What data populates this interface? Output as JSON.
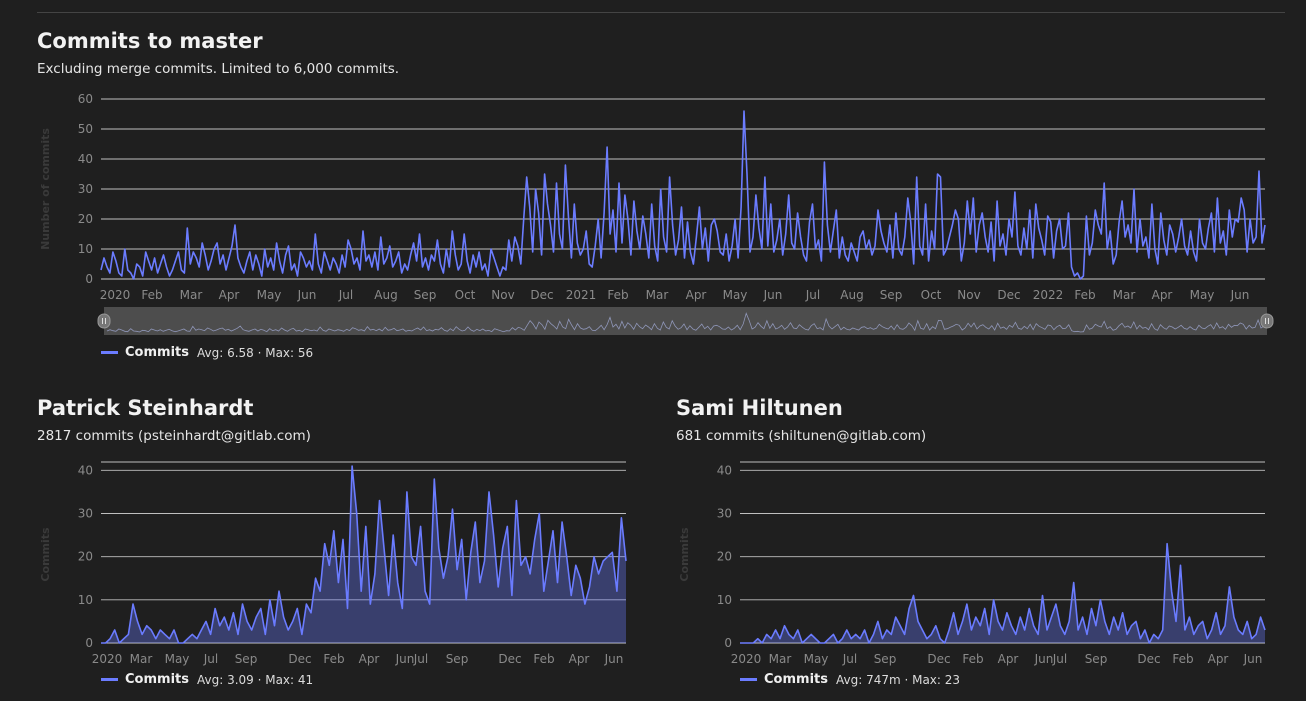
{
  "main": {
    "title": "Commits to master",
    "subtitle": "Excluding merge commits. Limited to 6,000 commits.",
    "legend_name": "Commits",
    "legend_stats": "Avg: 6.58 · Max: 56"
  },
  "contributors": [
    {
      "name": "Patrick Steinhardt",
      "summary": "2817 commits (psteinhardt@gitlab.com)",
      "legend_name": "Commits",
      "legend_stats": "Avg: 3.09 · Max: 41"
    },
    {
      "name": "Sami Hiltunen",
      "summary": "681 commits (shiltunen@gitlab.com)",
      "legend_name": "Commits",
      "legend_stats": "Avg: 747m · Max: 23"
    }
  ],
  "colors": {
    "series": "#6b7cff",
    "grid": "#dcdcdc",
    "axis_text": "#8a8a8a",
    "navigator": "#4d4d4d"
  },
  "chart_data": [
    {
      "type": "line",
      "title": "Commits to master",
      "ylabel": "Number of commits",
      "ylim": [
        0,
        60
      ],
      "yticks": [
        0,
        10,
        20,
        30,
        40,
        50,
        60
      ],
      "xlabels": [
        "2020",
        "Feb",
        "Mar",
        "Apr",
        "May",
        "Jun",
        "Jul",
        "Aug",
        "Sep",
        "Oct",
        "Nov",
        "Dec",
        "2021",
        "Feb",
        "Mar",
        "Apr",
        "May",
        "Jun",
        "Jul",
        "Aug",
        "Sep",
        "Oct",
        "Nov",
        "Dec",
        "2022",
        "Feb",
        "Mar",
        "Apr",
        "May",
        "Jun"
      ],
      "series": [
        {
          "name": "Commits",
          "values": [
            3,
            7,
            4,
            2,
            9,
            6,
            2,
            1,
            10,
            3,
            2,
            0,
            5,
            4,
            1,
            9,
            6,
            3,
            7,
            2,
            5,
            8,
            4,
            1,
            3,
            6,
            9,
            3,
            2,
            17,
            5,
            9,
            7,
            4,
            12,
            8,
            3,
            6,
            10,
            12,
            5,
            8,
            3,
            7,
            11,
            18,
            7,
            4,
            2,
            6,
            9,
            3,
            8,
            5,
            1,
            10,
            4,
            7,
            3,
            12,
            6,
            2,
            8,
            11,
            3,
            5,
            1,
            9,
            7,
            4,
            6,
            3,
            15,
            5,
            2,
            9,
            6,
            3,
            7,
            5,
            2,
            8,
            4,
            13,
            10,
            5,
            7,
            3,
            16,
            6,
            8,
            4,
            9,
            3,
            14,
            5,
            7,
            11,
            4,
            6,
            9,
            2,
            5,
            3,
            8,
            12,
            6,
            15,
            4,
            7,
            3,
            8,
            6,
            13,
            5,
            2,
            10,
            4,
            16,
            8,
            3,
            5,
            15,
            6,
            2,
            8,
            4,
            9,
            3,
            5,
            1,
            10,
            7,
            4,
            1,
            4,
            3,
            13,
            6,
            14,
            11,
            5,
            20,
            34,
            24,
            9,
            30,
            22,
            8,
            35,
            25,
            18,
            9,
            32,
            15,
            10,
            38,
            21,
            7,
            25,
            12,
            8,
            10,
            16,
            5,
            4,
            11,
            20,
            7,
            22,
            44,
            15,
            23,
            9,
            32,
            12,
            28,
            20,
            8,
            26,
            16,
            10,
            21,
            15,
            7,
            25,
            11,
            6,
            30,
            14,
            9,
            34,
            18,
            8,
            13,
            24,
            7,
            19,
            9,
            5,
            14,
            24,
            10,
            17,
            6,
            18,
            20,
            16,
            9,
            8,
            15,
            6,
            11,
            20,
            7,
            24,
            56,
            35,
            9,
            14,
            28,
            17,
            10,
            34,
            11,
            25,
            9,
            13,
            20,
            8,
            15,
            28,
            12,
            10,
            22,
            14,
            8,
            6,
            19,
            25,
            10,
            13,
            6,
            39,
            18,
            9,
            16,
            23,
            7,
            14,
            8,
            6,
            12,
            9,
            6,
            14,
            16,
            10,
            13,
            8,
            11,
            23,
            16,
            12,
            9,
            18,
            7,
            22,
            10,
            8,
            14,
            27,
            19,
            5,
            34,
            11,
            8,
            25,
            6,
            16,
            10,
            35,
            34,
            8,
            10,
            14,
            18,
            23,
            20,
            6,
            12,
            26,
            15,
            27,
            9,
            18,
            22,
            14,
            9,
            19,
            6,
            26,
            11,
            15,
            8,
            20,
            14,
            29,
            11,
            8,
            17,
            10,
            23,
            7,
            25,
            17,
            13,
            8,
            21,
            19,
            7,
            16,
            20,
            10,
            11,
            22,
            4,
            1,
            2,
            0,
            1,
            21,
            8,
            12,
            23,
            18,
            15,
            32,
            10,
            16,
            5,
            8,
            19,
            26,
            14,
            18,
            12,
            30,
            9,
            20,
            11,
            14,
            7,
            25,
            10,
            5,
            22,
            13,
            8,
            18,
            15,
            9,
            14,
            20,
            11,
            8,
            16,
            9,
            6,
            20,
            12,
            10,
            17,
            22,
            9,
            27,
            12,
            16,
            8,
            23,
            14,
            20,
            19,
            27,
            23,
            9,
            20,
            12,
            14,
            36,
            12,
            18
          ]
        }
      ]
    },
    {
      "type": "line",
      "title": "Patrick Steinhardt",
      "ylabel": "Commits",
      "ylim": [
        0,
        41
      ],
      "yticks": [
        0,
        10,
        20,
        30,
        40
      ],
      "xlabels": [
        "2020",
        "Mar",
        "May",
        "Jul",
        "Sep",
        "Dec",
        "Feb",
        "Apr",
        "Jun",
        "Jul",
        "Sep",
        "Dec",
        "Feb",
        "Apr",
        "Jun"
      ],
      "series": [
        {
          "name": "Commits",
          "values": [
            0,
            0,
            1,
            3,
            0,
            1,
            2,
            9,
            5,
            2,
            4,
            3,
            1,
            3,
            2,
            1,
            3,
            0,
            0,
            1,
            2,
            1,
            3,
            5,
            2,
            8,
            4,
            6,
            3,
            7,
            2,
            9,
            5,
            3,
            6,
            8,
            2,
            10,
            4,
            12,
            6,
            3,
            5,
            8,
            2,
            9,
            7,
            15,
            12,
            23,
            18,
            26,
            14,
            24,
            8,
            41,
            30,
            12,
            27,
            9,
            16,
            33,
            22,
            11,
            25,
            14,
            8,
            35,
            20,
            18,
            27,
            12,
            9,
            38,
            22,
            15,
            20,
            31,
            17,
            24,
            10,
            21,
            28,
            14,
            19,
            35,
            25,
            13,
            22,
            27,
            11,
            33,
            18,
            20,
            16,
            24,
            30,
            12,
            19,
            26,
            14,
            28,
            20,
            11,
            18,
            15,
            9,
            13,
            20,
            16,
            19,
            20,
            21,
            12,
            29,
            19
          ]
        }
      ]
    },
    {
      "type": "line",
      "title": "Sami Hiltunen",
      "ylabel": "Commits",
      "ylim": [
        0,
        41
      ],
      "yticks": [
        0,
        10,
        20,
        30,
        40
      ],
      "xlabels": [
        "2020",
        "Mar",
        "May",
        "Jul",
        "Sep",
        "Dec",
        "Feb",
        "Apr",
        "Jun",
        "Jul",
        "Sep",
        "Dec",
        "Feb",
        "Apr",
        "Jun"
      ],
      "series": [
        {
          "name": "Commits",
          "values": [
            0,
            0,
            0,
            0,
            1,
            0,
            2,
            1,
            3,
            1,
            4,
            2,
            1,
            3,
            0,
            1,
            2,
            1,
            0,
            0,
            1,
            2,
            0,
            1,
            3,
            1,
            2,
            1,
            3,
            0,
            2,
            5,
            1,
            3,
            2,
            6,
            4,
            2,
            8,
            11,
            5,
            3,
            1,
            2,
            4,
            1,
            0,
            3,
            7,
            2,
            5,
            9,
            3,
            6,
            4,
            8,
            2,
            10,
            5,
            3,
            7,
            4,
            2,
            6,
            3,
            8,
            4,
            2,
            11,
            3,
            6,
            9,
            4,
            2,
            5,
            14,
            3,
            6,
            2,
            8,
            4,
            10,
            5,
            2,
            6,
            3,
            7,
            2,
            4,
            5,
            1,
            3,
            0,
            2,
            1,
            3,
            23,
            12,
            5,
            18,
            3,
            6,
            2,
            4,
            5,
            1,
            3,
            7,
            2,
            4,
            13,
            6,
            3,
            2,
            5,
            1,
            2,
            6,
            3
          ]
        }
      ]
    }
  ]
}
